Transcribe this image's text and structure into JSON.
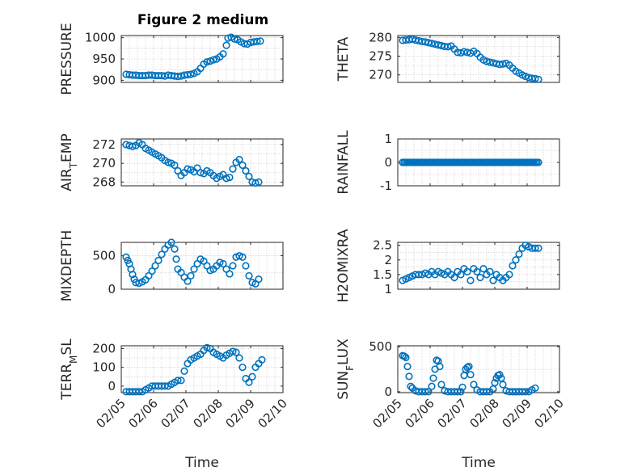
{
  "figure": {
    "title": "Figure 2 medium",
    "marker_color": "#0072BD",
    "grid": true
  },
  "chart_data": [
    {
      "type": "scatter",
      "ylabel": "PRESSURE",
      "ylim": [
        895,
        1005
      ],
      "yticks": [
        900,
        950,
        1000
      ],
      "xlabel": "",
      "x_domain": [
        "02/05",
        "02/10"
      ],
      "xticks": [
        "02/05",
        "02/06",
        "02/07",
        "02/08",
        "02/09",
        "02/10"
      ],
      "show_xticklabels": false,
      "x": [
        0.15,
        0.25,
        0.35,
        0.45,
        0.55,
        0.65,
        0.75,
        0.85,
        0.95,
        1.05,
        1.15,
        1.25,
        1.35,
        1.45,
        1.55,
        1.65,
        1.75,
        1.85,
        1.95,
        2.05,
        2.15,
        2.25,
        2.35,
        2.45,
        2.55,
        2.65,
        2.75,
        2.85,
        2.95,
        3.05,
        3.15,
        3.25,
        3.3,
        3.4,
        3.5,
        3.6,
        3.7,
        3.8,
        3.9,
        4.0,
        4.1,
        4.2,
        4.3
      ],
      "y": [
        914,
        913,
        912,
        912,
        911,
        911,
        911,
        912,
        912,
        911,
        911,
        911,
        910,
        912,
        911,
        910,
        909,
        910,
        912,
        913,
        914,
        916,
        920,
        928,
        938,
        943,
        945,
        948,
        950,
        955,
        962,
        982,
        999,
        1001,
        997,
        995,
        990,
        986,
        985,
        989,
        990,
        991,
        992
      ]
    },
    {
      "type": "scatter",
      "ylabel": "THETA",
      "ylim": [
        268,
        280.5
      ],
      "yticks": [
        270,
        275,
        280
      ],
      "xlabel": "",
      "x_domain": [
        "02/05",
        "02/10"
      ],
      "xticks": [
        "02/05",
        "02/06",
        "02/07",
        "02/08",
        "02/09",
        "02/10"
      ],
      "show_xticklabels": false,
      "x": [
        0.15,
        0.25,
        0.35,
        0.45,
        0.55,
        0.65,
        0.75,
        0.85,
        0.95,
        1.05,
        1.15,
        1.25,
        1.35,
        1.45,
        1.55,
        1.65,
        1.75,
        1.85,
        1.95,
        2.05,
        2.15,
        2.25,
        2.35,
        2.45,
        2.55,
        2.65,
        2.75,
        2.85,
        2.95,
        3.05,
        3.15,
        3.25,
        3.35,
        3.45,
        3.55,
        3.65,
        3.75,
        3.85,
        3.95,
        4.05,
        4.15,
        4.25,
        4.35
      ],
      "y": [
        279.2,
        279.3,
        279.4,
        279.5,
        279.3,
        279.1,
        278.9,
        278.8,
        278.6,
        278.4,
        278.2,
        278.0,
        277.8,
        277.6,
        277.5,
        277.7,
        276.9,
        276.0,
        275.9,
        276.2,
        276.0,
        275.8,
        276.3,
        275.7,
        274.7,
        274.0,
        273.6,
        273.4,
        273.2,
        273.0,
        272.8,
        272.9,
        273.1,
        272.6,
        271.8,
        271.0,
        270.5,
        270.0,
        269.6,
        269.3,
        269.1,
        269.0,
        268.8
      ]
    },
    {
      "type": "scatter",
      "ylabel": "AIR_TEMP",
      "ylim": [
        267.6,
        272.6
      ],
      "yticks": [
        268,
        270,
        272
      ],
      "xlabel": "",
      "x_domain": [
        "02/05",
        "02/10"
      ],
      "xticks": [
        "02/05",
        "02/06",
        "02/07",
        "02/08",
        "02/09",
        "02/10"
      ],
      "show_xticklabels": false,
      "x": [
        0.15,
        0.25,
        0.35,
        0.45,
        0.55,
        0.65,
        0.75,
        0.85,
        0.95,
        1.05,
        1.15,
        1.25,
        1.35,
        1.45,
        1.55,
        1.65,
        1.75,
        1.85,
        1.95,
        2.05,
        2.15,
        2.25,
        2.35,
        2.45,
        2.55,
        2.65,
        2.75,
        2.85,
        2.95,
        3.05,
        3.15,
        3.25,
        3.35,
        3.45,
        3.55,
        3.65,
        3.75,
        3.85,
        3.95,
        4.05,
        4.15,
        4.25
      ],
      "y": [
        272.0,
        271.9,
        271.8,
        271.9,
        272.2,
        272.0,
        271.6,
        271.4,
        271.2,
        271.0,
        270.8,
        270.6,
        270.3,
        270.1,
        270.0,
        269.8,
        269.2,
        268.7,
        269.0,
        269.4,
        269.3,
        269.1,
        269.5,
        269.0,
        268.9,
        269.2,
        269.0,
        268.7,
        268.4,
        268.6,
        268.8,
        268.4,
        268.5,
        269.4,
        270.1,
        270.4,
        269.8,
        269.2,
        268.6,
        268.0,
        267.9,
        268.0
      ]
    },
    {
      "type": "scatter",
      "ylabel": "RAINFALL",
      "ylim": [
        -1,
        1
      ],
      "yticks": [
        -1,
        0,
        1
      ],
      "xlabel": "",
      "x_domain": [
        "02/05",
        "02/10"
      ],
      "xticks": [
        "02/05",
        "02/06",
        "02/07",
        "02/08",
        "02/09",
        "02/10"
      ],
      "show_xticklabels": false,
      "x": [
        0.15,
        0.2,
        0.25,
        0.3,
        0.35,
        0.4,
        0.45,
        0.5,
        0.55,
        0.6,
        0.65,
        0.7,
        0.75,
        0.8,
        0.85,
        0.9,
        0.95,
        1.0,
        1.05,
        1.1,
        1.15,
        1.2,
        1.25,
        1.3,
        1.35,
        1.4,
        1.45,
        1.5,
        1.55,
        1.6,
        1.65,
        1.7,
        1.75,
        1.8,
        1.85,
        1.9,
        1.95,
        2.0,
        2.05,
        2.1,
        2.15,
        2.2,
        2.25,
        2.3,
        2.35,
        2.4,
        2.45,
        2.5,
        2.55,
        2.6,
        2.65,
        2.7,
        2.75,
        2.8,
        2.85,
        2.9,
        2.95,
        3.0,
        3.05,
        3.1,
        3.15,
        3.2,
        3.25,
        3.3,
        3.35,
        3.4,
        3.45,
        3.5,
        3.55,
        3.6,
        3.65,
        3.7,
        3.75,
        3.8,
        3.85,
        3.9,
        3.95,
        4.0,
        4.05,
        4.1,
        4.15,
        4.2,
        4.25,
        4.3,
        4.35
      ],
      "y": [
        0,
        0,
        0,
        0,
        0,
        0,
        0,
        0,
        0,
        0,
        0,
        0,
        0,
        0,
        0,
        0,
        0,
        0,
        0,
        0,
        0,
        0,
        0,
        0,
        0,
        0,
        0,
        0,
        0,
        0,
        0,
        0,
        0,
        0,
        0,
        0,
        0,
        0,
        0,
        0,
        0,
        0,
        0,
        0,
        0,
        0,
        0,
        0,
        0,
        0,
        0,
        0,
        0,
        0,
        0,
        0,
        0,
        0,
        0,
        0,
        0,
        0,
        0,
        0,
        0,
        0,
        0,
        0,
        0,
        0,
        0,
        0,
        0,
        0,
        0,
        0,
        0,
        0,
        0,
        0,
        0,
        0,
        0,
        0,
        0
      ]
    },
    {
      "type": "scatter",
      "ylabel": "MIXDEPTH",
      "ylim": [
        0,
        700
      ],
      "yticks": [
        0,
        500
      ],
      "xlabel": "",
      "x_domain": [
        "02/05",
        "02/10"
      ],
      "xticks": [
        "02/05",
        "02/06",
        "02/07",
        "02/08",
        "02/09",
        "02/10"
      ],
      "show_xticklabels": false,
      "x": [
        0.15,
        0.2,
        0.25,
        0.3,
        0.35,
        0.4,
        0.45,
        0.55,
        0.65,
        0.75,
        0.85,
        0.95,
        1.05,
        1.15,
        1.25,
        1.35,
        1.45,
        1.55,
        1.65,
        1.7,
        1.75,
        1.85,
        1.95,
        2.05,
        2.15,
        2.25,
        2.35,
        2.45,
        2.55,
        2.65,
        2.75,
        2.85,
        2.95,
        3.05,
        3.15,
        3.25,
        3.35,
        3.45,
        3.55,
        3.65,
        3.75,
        3.85,
        3.95,
        4.05,
        4.15,
        4.25
      ],
      "y": [
        480,
        430,
        380,
        300,
        220,
        150,
        100,
        90,
        110,
        140,
        200,
        270,
        350,
        430,
        520,
        600,
        660,
        700,
        600,
        450,
        300,
        250,
        180,
        120,
        200,
        300,
        380,
        450,
        420,
        350,
        280,
        300,
        350,
        400,
        380,
        300,
        230,
        350,
        480,
        500,
        480,
        350,
        200,
        100,
        80,
        150
      ]
    },
    {
      "type": "scatter",
      "ylabel": "H2OMIXRA",
      "ylim": [
        1,
        2.6
      ],
      "yticks": [
        1,
        1.5,
        2,
        2.5
      ],
      "xlabel": "",
      "x_domain": [
        "02/05",
        "02/10"
      ],
      "xticks": [
        "02/05",
        "02/06",
        "02/07",
        "02/08",
        "02/09",
        "02/10"
      ],
      "show_xticklabels": false,
      "x": [
        0.15,
        0.25,
        0.35,
        0.45,
        0.55,
        0.65,
        0.75,
        0.85,
        0.95,
        1.05,
        1.15,
        1.25,
        1.35,
        1.45,
        1.55,
        1.65,
        1.75,
        1.85,
        1.95,
        2.05,
        2.15,
        2.25,
        2.35,
        2.45,
        2.55,
        2.65,
        2.75,
        2.85,
        2.95,
        3.05,
        3.15,
        3.25,
        3.35,
        3.45,
        3.55,
        3.65,
        3.75,
        3.85,
        3.95,
        4.05,
        4.15,
        4.25,
        4.35
      ],
      "y": [
        1.3,
        1.35,
        1.4,
        1.45,
        1.5,
        1.5,
        1.5,
        1.55,
        1.5,
        1.6,
        1.5,
        1.6,
        1.55,
        1.5,
        1.6,
        1.5,
        1.4,
        1.6,
        1.5,
        1.7,
        1.6,
        1.3,
        1.7,
        1.6,
        1.4,
        1.7,
        1.5,
        1.6,
        1.3,
        1.5,
        1.4,
        1.3,
        1.4,
        1.5,
        1.8,
        2.0,
        2.2,
        2.4,
        2.5,
        2.45,
        2.4,
        2.4,
        2.4
      ]
    },
    {
      "type": "scatter",
      "ylabel": "TERR_MSL",
      "ylim": [
        -35,
        215
      ],
      "yticks": [
        0,
        100,
        200
      ],
      "xlabel": "Time",
      "x_domain": [
        "02/05",
        "02/10"
      ],
      "xticks": [
        "02/05",
        "02/06",
        "02/07",
        "02/08",
        "02/09",
        "02/10"
      ],
      "show_xticklabels": true,
      "x": [
        0.15,
        0.25,
        0.35,
        0.45,
        0.55,
        0.65,
        0.75,
        0.85,
        0.95,
        1.05,
        1.15,
        1.25,
        1.35,
        1.45,
        1.55,
        1.65,
        1.75,
        1.85,
        1.95,
        2.05,
        2.15,
        2.25,
        2.35,
        2.45,
        2.55,
        2.65,
        2.75,
        2.85,
        2.95,
        3.05,
        3.15,
        3.25,
        3.35,
        3.45,
        3.55,
        3.65,
        3.75,
        3.85,
        3.95,
        4.05,
        4.15,
        4.25,
        4.35
      ],
      "y": [
        -30,
        -30,
        -30,
        -30,
        -30,
        -30,
        -20,
        -10,
        0,
        0,
        0,
        0,
        0,
        0,
        10,
        20,
        30,
        30,
        80,
        120,
        140,
        150,
        160,
        170,
        190,
        205,
        200,
        180,
        170,
        160,
        150,
        165,
        175,
        185,
        180,
        150,
        100,
        40,
        20,
        50,
        100,
        120,
        140
      ]
    },
    {
      "type": "scatter",
      "ylabel": "SUN_FLUX",
      "ylim": [
        -10,
        510
      ],
      "yticks": [
        0,
        500
      ],
      "xlabel": "Time",
      "x_domain": [
        "02/05",
        "02/10"
      ],
      "xticks": [
        "02/05",
        "02/06",
        "02/07",
        "02/08",
        "02/09",
        "02/10"
      ],
      "show_xticklabels": true,
      "x": [
        0.15,
        0.2,
        0.25,
        0.3,
        0.35,
        0.4,
        0.45,
        0.55,
        0.65,
        0.75,
        0.85,
        0.95,
        1.05,
        1.1,
        1.15,
        1.2,
        1.25,
        1.3,
        1.35,
        1.45,
        1.55,
        1.65,
        1.75,
        1.85,
        1.95,
        2.0,
        2.05,
        2.1,
        2.15,
        2.2,
        2.25,
        2.35,
        2.45,
        2.55,
        2.65,
        2.75,
        2.85,
        2.95,
        3.0,
        3.05,
        3.1,
        3.15,
        3.2,
        3.25,
        3.35,
        3.45,
        3.55,
        3.65,
        3.75,
        3.85,
        3.95,
        4.05,
        4.15,
        4.25
      ],
      "y": [
        400,
        395,
        380,
        280,
        170,
        60,
        40,
        10,
        0,
        0,
        0,
        0,
        60,
        150,
        250,
        350,
        340,
        280,
        80,
        10,
        0,
        0,
        0,
        0,
        0,
        50,
        180,
        250,
        270,
        280,
        190,
        80,
        20,
        0,
        0,
        0,
        0,
        30,
        100,
        150,
        180,
        190,
        150,
        80,
        10,
        0,
        0,
        0,
        0,
        0,
        0,
        0,
        20,
        40
      ]
    }
  ]
}
